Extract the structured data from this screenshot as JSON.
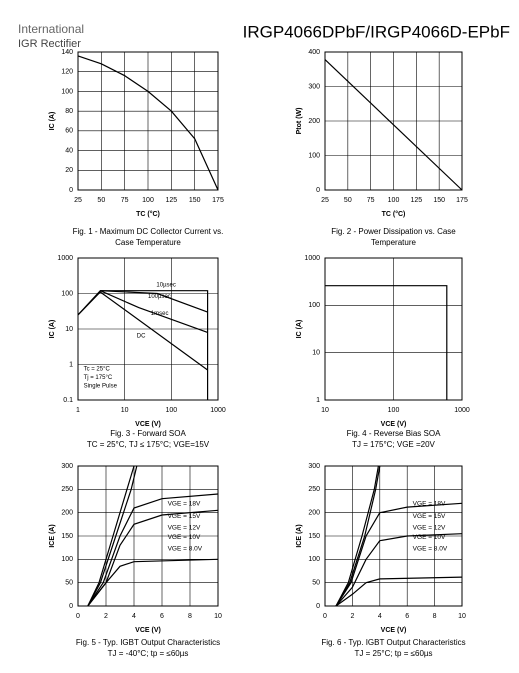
{
  "header": {
    "company": "International",
    "logo": "IGR Rectifier",
    "part": "IRGP4066DPbF/IRGP4066D-EPbF"
  },
  "chart_data": [
    {
      "type": "line",
      "title": [
        "Fig. 1 - Maximum DC Collector Current vs.",
        "Case Temperature"
      ],
      "xlabel": "TC (°C)",
      "ylabel": "IC (A)",
      "xlim": [
        25,
        175
      ],
      "ylim": [
        0,
        140
      ],
      "xticks": [
        25,
        50,
        75,
        100,
        125,
        150,
        175
      ],
      "yticks": [
        0,
        20,
        40,
        60,
        80,
        100,
        120,
        140
      ],
      "grid": true,
      "series": [
        {
          "color": "#000000",
          "x": [
            25,
            50,
            75,
            100,
            125,
            150,
            175
          ],
          "values": [
            136,
            128,
            116,
            100,
            80,
            52,
            0
          ]
        }
      ]
    },
    {
      "type": "line",
      "title": [
        "Fig. 2 - Power Dissipation vs. Case",
        "Temperature"
      ],
      "xlabel": "TC (°C)",
      "ylabel": "Ptot (W)",
      "xlim": [
        25,
        175
      ],
      "ylim": [
        0,
        400
      ],
      "xticks": [
        25,
        50,
        75,
        100,
        125,
        150,
        175
      ],
      "yticks": [
        0,
        100,
        200,
        300,
        400
      ],
      "grid": true,
      "series": [
        {
          "color": "#000000",
          "x": [
            25,
            175
          ],
          "values": [
            378,
            0
          ]
        }
      ]
    },
    {
      "type": "line",
      "title": [
        "Fig. 3 - Forward SOA",
        "TC = 25°C, TJ ≤ 175°C; VGE=15V"
      ],
      "xlabel": "VCE (V)",
      "ylabel": "IC (A)",
      "xlim": [
        1,
        1000
      ],
      "ylim": [
        0.1,
        1000
      ],
      "log_x": true,
      "log_y": true,
      "xticks": [
        1,
        10,
        100,
        1000
      ],
      "yticks": [
        0.1,
        1,
        10,
        100,
        1000
      ],
      "grid": true,
      "annotations": [
        "10µsec",
        "100µsec",
        "1msec",
        "DC",
        "Tc = 25°C",
        "Tj = 175°C",
        "Single Pulse"
      ],
      "series": [
        {
          "color": "#000000",
          "x": [
            1,
            3,
            600,
            600
          ],
          "values": [
            25,
            120,
            120,
            0.1
          ]
        },
        {
          "color": "#000000",
          "x": [
            3,
            50,
            600
          ],
          "values": [
            120,
            100,
            30
          ]
        },
        {
          "color": "#000000",
          "x": [
            3,
            20,
            600
          ],
          "values": [
            120,
            40,
            8
          ]
        },
        {
          "color": "#000000",
          "x": [
            1,
            3,
            600
          ],
          "values": [
            25,
            110,
            0.7
          ]
        }
      ]
    },
    {
      "type": "line",
      "title": [
        "Fig. 4 - Reverse Bias SOA",
        "TJ = 175°C; VGE =20V"
      ],
      "xlabel": "VCE (V)",
      "ylabel": "IC (A)",
      "xlim": [
        10,
        1000
      ],
      "ylim": [
        1,
        1000
      ],
      "log_x": true,
      "log_y": true,
      "xticks": [
        10,
        100,
        1000
      ],
      "yticks": [
        1,
        10,
        100,
        1000
      ],
      "grid": true,
      "series": [
        {
          "color": "#000000",
          "x": [
            10,
            600,
            600
          ],
          "values": [
            260,
            260,
            1
          ]
        }
      ]
    },
    {
      "type": "line",
      "title": [
        "Fig. 5 - Typ. IGBT Output Characteristics",
        "TJ = -40°C; tp = ≤60µs"
      ],
      "xlabel": "VCE (V)",
      "ylabel": "ICE (A)",
      "xlim": [
        0,
        10
      ],
      "ylim": [
        0,
        300
      ],
      "xticks": [
        0,
        2,
        4,
        6,
        8,
        10
      ],
      "yticks": [
        0,
        50,
        100,
        150,
        200,
        250,
        300
      ],
      "grid": true,
      "series": [
        {
          "name": "VGE = 18V",
          "color": "#000000",
          "x": [
            0.7,
            1.5,
            2.5,
            3.5,
            4.0
          ],
          "values": [
            0,
            50,
            150,
            250,
            300
          ]
        },
        {
          "name": "VGE = 15V",
          "color": "#000000",
          "x": [
            0.7,
            1.6,
            2.7,
            3.8,
            4.2
          ],
          "values": [
            0,
            50,
            150,
            250,
            300
          ]
        },
        {
          "name": "VGE = 12V",
          "color": "#000000",
          "x": [
            0.7,
            1.8,
            3,
            4,
            6,
            10
          ],
          "values": [
            0,
            50,
            150,
            210,
            230,
            240
          ]
        },
        {
          "name": "VGE = 10V",
          "color": "#000000",
          "x": [
            0.7,
            2,
            3,
            4,
            6,
            10
          ],
          "values": [
            0,
            50,
            130,
            175,
            195,
            205
          ]
        },
        {
          "name": "VGE = 8.0V",
          "color": "#000000",
          "x": [
            0.7,
            2,
            3,
            4,
            10
          ],
          "values": [
            0,
            50,
            85,
            95,
            100
          ]
        }
      ]
    },
    {
      "type": "line",
      "title": [
        "Fig. 6 - Typ. IGBT Output Characteristics",
        "TJ = 25°C; tp = ≤60µs"
      ],
      "xlabel": "VCE (V)",
      "ylabel": "ICE (A)",
      "xlim": [
        0,
        10
      ],
      "ylim": [
        0,
        300
      ],
      "xticks": [
        0,
        2,
        4,
        6,
        8,
        10
      ],
      "yticks": [
        0,
        50,
        100,
        150,
        200,
        250,
        300
      ],
      "grid": true,
      "series": [
        {
          "name": "VGE = 18V",
          "color": "#000000",
          "x": [
            0.8,
            1.7,
            2.7,
            3.6,
            3.9
          ],
          "values": [
            0,
            50,
            150,
            250,
            300
          ]
        },
        {
          "name": "VGE = 15V",
          "color": "#000000",
          "x": [
            0.8,
            1.8,
            2.9,
            3.7,
            4.0
          ],
          "values": [
            0,
            50,
            150,
            250,
            300
          ]
        },
        {
          "name": "VGE = 12V",
          "color": "#000000",
          "x": [
            0.8,
            1.9,
            3,
            4,
            6,
            10
          ],
          "values": [
            0,
            50,
            150,
            200,
            212,
            220
          ]
        },
        {
          "name": "VGE = 10V",
          "color": "#000000",
          "x": [
            0.8,
            2,
            3,
            4,
            6,
            10
          ],
          "values": [
            0,
            40,
            100,
            140,
            150,
            155
          ]
        },
        {
          "name": "VGE = 8.0V",
          "color": "#000000",
          "x": [
            0.8,
            2,
            3,
            4,
            10
          ],
          "values": [
            0,
            25,
            50,
            58,
            62
          ]
        }
      ]
    }
  ]
}
